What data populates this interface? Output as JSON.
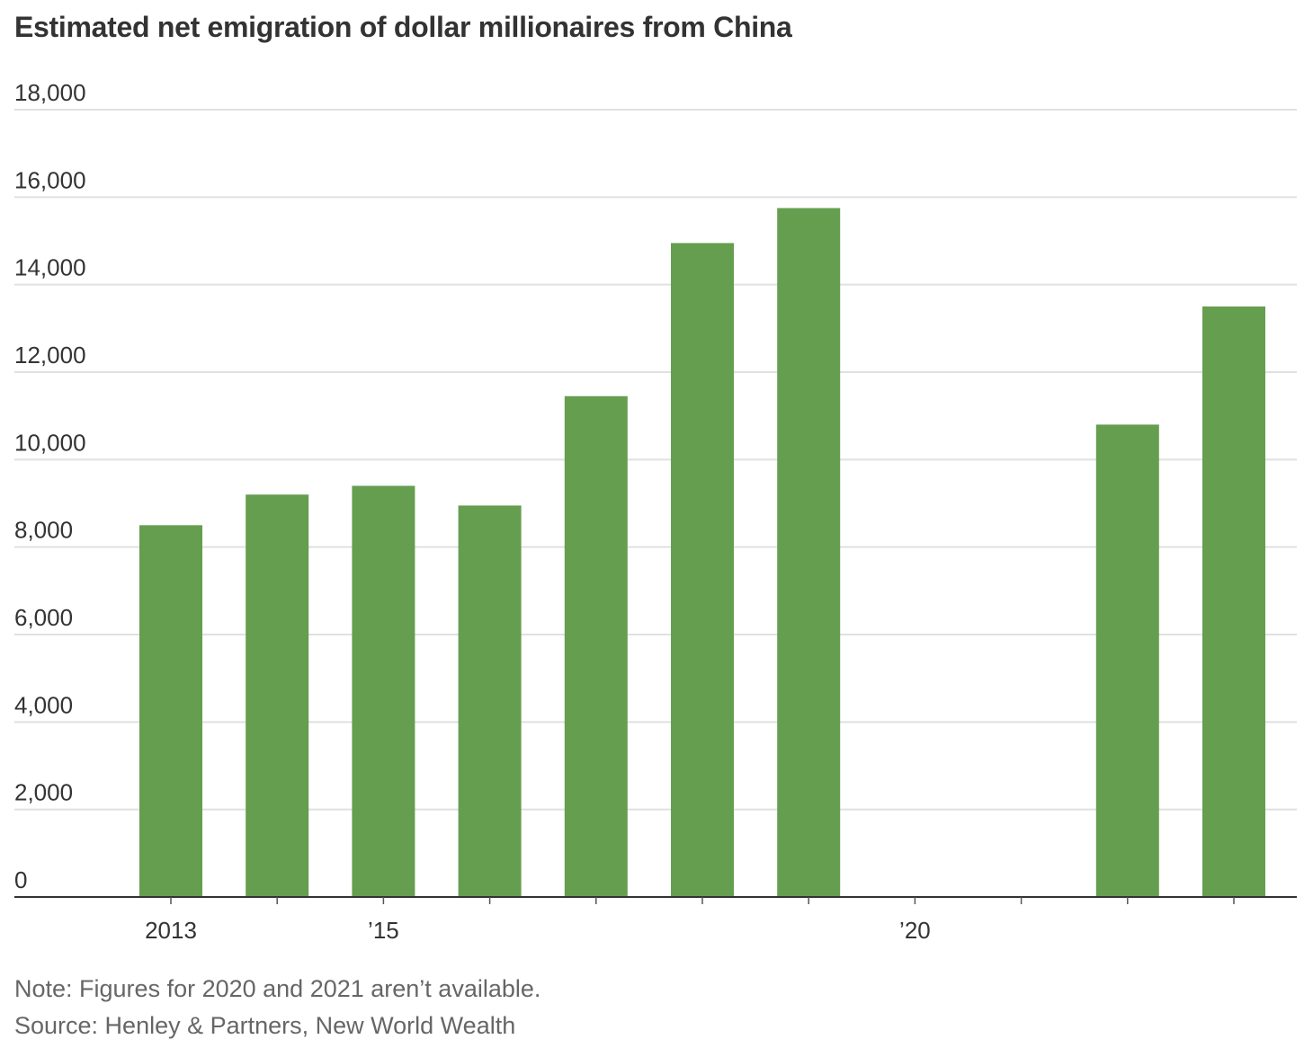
{
  "chart_data": {
    "type": "bar",
    "title": "Estimated net emigration of dollar millionaires from China",
    "years": [
      2013,
      2014,
      2015,
      2016,
      2017,
      2018,
      2019,
      2020,
      2021,
      2022,
      2023
    ],
    "values": [
      8500,
      9200,
      9400,
      8950,
      11450,
      14950,
      15750,
      null,
      null,
      10800,
      13500
    ],
    "ylim": [
      0,
      18000
    ],
    "yticks": [
      0,
      2000,
      4000,
      6000,
      8000,
      10000,
      12000,
      14000,
      16000,
      18000
    ],
    "ytick_labels": [
      "0",
      "2,000",
      "4,000",
      "6,000",
      "8,000",
      "10,000",
      "12,000",
      "14,000",
      "16,000",
      "18,000"
    ],
    "xtick_labels": [
      {
        "year": 2013,
        "label": "2013"
      },
      {
        "year": 2015,
        "label": "’15"
      },
      {
        "year": 2020,
        "label": "’20"
      }
    ],
    "bar_color": "#659e4f",
    "grid": true,
    "note": "Note: Figures for 2020 and 2021 aren’t available.",
    "source": "Source: Henley & Partners, New World Wealth"
  }
}
